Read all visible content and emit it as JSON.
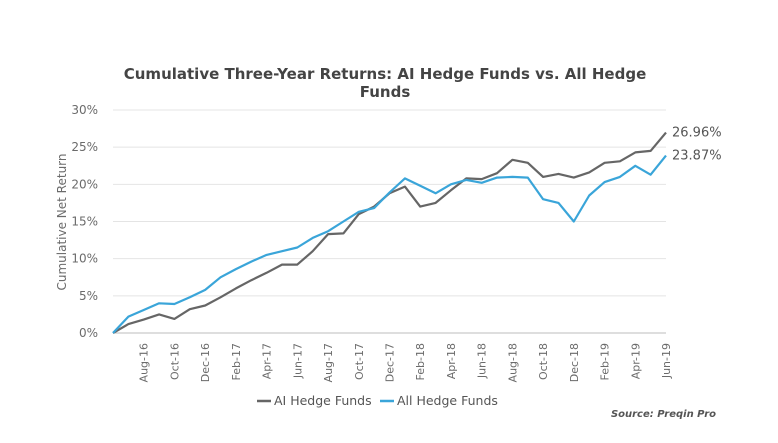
{
  "chart_data": {
    "type": "line",
    "title": [
      "Cumulative Three-Year Returns: AI Hedge Funds vs. All Hedge",
      "Funds"
    ],
    "ylabel": "Cumulative Net Return",
    "xlabel": "",
    "ylim": [
      0,
      30
    ],
    "yticks": [
      "0%",
      "5%",
      "10%",
      "15%",
      "20%",
      "25%",
      "30%"
    ],
    "ytick_values": [
      0,
      5,
      10,
      15,
      20,
      25,
      30
    ],
    "grid": true,
    "legend_position": "bottom",
    "source": "Source: Preqin Pro",
    "x": [
      "Jun-16",
      "Jul-16",
      "Aug-16",
      "Sep-16",
      "Oct-16",
      "Nov-16",
      "Dec-16",
      "Jan-17",
      "Feb-17",
      "Mar-17",
      "Apr-17",
      "May-17",
      "Jun-17",
      "Jul-17",
      "Aug-17",
      "Sep-17",
      "Oct-17",
      "Nov-17",
      "Dec-17",
      "Jan-18",
      "Feb-18",
      "Mar-18",
      "Apr-18",
      "May-18",
      "Jun-18",
      "Jul-18",
      "Aug-18",
      "Sep-18",
      "Oct-18",
      "Nov-18",
      "Dec-18",
      "Jan-19",
      "Feb-19",
      "Mar-19",
      "Apr-19",
      "May-19",
      "Jun-19"
    ],
    "xtick_labels": [
      "Aug-16",
      "Oct-16",
      "Dec-16",
      "Feb-17",
      "Apr-17",
      "Jun-17",
      "Aug-17",
      "Oct-17",
      "Dec-17",
      "Feb-18",
      "Apr-18",
      "Jun-18",
      "Aug-18",
      "Oct-18",
      "Dec-18",
      "Feb-19",
      "Apr-19",
      "Jun-19"
    ],
    "series": [
      {
        "name": "AI Hedge Funds",
        "color": "#666666",
        "end_label": "26.96%",
        "values": [
          0,
          1.2,
          1.8,
          2.5,
          1.9,
          3.2,
          3.7,
          4.8,
          6.0,
          7.1,
          8.1,
          9.2,
          9.2,
          11.0,
          13.3,
          13.4,
          16.0,
          17.0,
          18.8,
          19.7,
          17.0,
          17.5,
          19.2,
          20.8,
          20.7,
          21.5,
          23.3,
          22.9,
          21.0,
          21.4,
          20.9,
          21.6,
          22.9,
          23.1,
          24.3,
          24.5,
          26.96
        ]
      },
      {
        "name": "All Hedge Funds",
        "color": "#3aa5d9",
        "end_label": "23.87%",
        "values": [
          0,
          2.2,
          3.1,
          4.0,
          3.9,
          4.8,
          5.8,
          7.5,
          8.6,
          9.6,
          10.5,
          11.0,
          11.5,
          12.8,
          13.7,
          15.0,
          16.3,
          16.8,
          18.9,
          20.8,
          19.8,
          18.8,
          20.0,
          20.6,
          20.2,
          20.9,
          21.0,
          20.9,
          18.0,
          17.5,
          15.0,
          18.5,
          20.3,
          21.0,
          22.5,
          21.3,
          23.87
        ]
      }
    ]
  }
}
